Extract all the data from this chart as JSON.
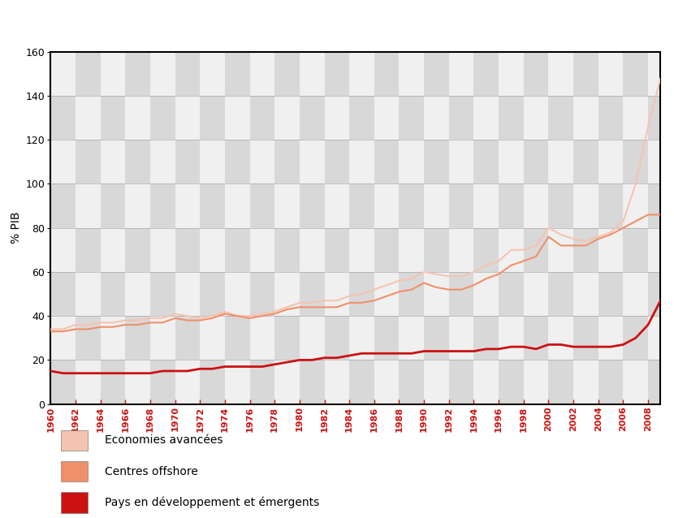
{
  "ylabel": "% PIB",
  "years": [
    1960,
    1961,
    1962,
    1963,
    1964,
    1965,
    1966,
    1967,
    1968,
    1969,
    1970,
    1971,
    1972,
    1973,
    1974,
    1975,
    1976,
    1977,
    1978,
    1979,
    1980,
    1981,
    1982,
    1983,
    1984,
    1985,
    1986,
    1987,
    1988,
    1989,
    1990,
    1991,
    1992,
    1993,
    1994,
    1995,
    1996,
    1997,
    1998,
    1999,
    2000,
    2001,
    2002,
    2003,
    2004,
    2005,
    2006,
    2007,
    2008,
    2009
  ],
  "economies_avancees": [
    34,
    34,
    36,
    36,
    37,
    37,
    38,
    38,
    39,
    39,
    41,
    40,
    39,
    40,
    42,
    40,
    40,
    41,
    42,
    44,
    46,
    46,
    47,
    47,
    49,
    50,
    52,
    54,
    56,
    57,
    60,
    59,
    58,
    58,
    60,
    63,
    65,
    70,
    70,
    72,
    80,
    77,
    75,
    74,
    76,
    78,
    83,
    100,
    126,
    148
  ],
  "centres_offshore": [
    33,
    33,
    34,
    34,
    35,
    35,
    36,
    36,
    37,
    37,
    39,
    38,
    38,
    39,
    41,
    40,
    39,
    40,
    41,
    43,
    44,
    44,
    44,
    44,
    46,
    46,
    47,
    49,
    51,
    52,
    55,
    53,
    52,
    52,
    54,
    57,
    59,
    63,
    65,
    67,
    76,
    72,
    72,
    72,
    75,
    77,
    80,
    83,
    86,
    86
  ],
  "pays_developpement": [
    15,
    14,
    14,
    14,
    14,
    14,
    14,
    14,
    14,
    15,
    15,
    15,
    16,
    16,
    17,
    17,
    17,
    17,
    18,
    19,
    20,
    20,
    21,
    21,
    22,
    23,
    23,
    23,
    23,
    23,
    24,
    24,
    24,
    24,
    24,
    25,
    25,
    26,
    26,
    25,
    27,
    27,
    26,
    26,
    26,
    26,
    27,
    30,
    36,
    47
  ],
  "xlim": [
    1960,
    2009
  ],
  "ylim": [
    0,
    160
  ],
  "yticks": [
    0,
    20,
    40,
    60,
    80,
    100,
    120,
    140,
    160
  ],
  "xticks": [
    1960,
    1962,
    1964,
    1966,
    1968,
    1970,
    1972,
    1974,
    1976,
    1978,
    1980,
    1982,
    1984,
    1986,
    1988,
    1990,
    1992,
    1994,
    1996,
    1998,
    2000,
    2002,
    2004,
    2006,
    2008
  ],
  "color_economies": "#f5c4b0",
  "color_offshore": "#f0906a",
  "color_pays": "#cc1111",
  "legend_labels": [
    "Economies avancées",
    "Centres offshore",
    "Pays en développement et émergents"
  ],
  "legend_colors": [
    "#f5c4b0",
    "#f0906a",
    "#cc1111"
  ],
  "bg_checker_light": "#d8d8d8",
  "bg_checker_white": "#f0f0f0",
  "grid_color": "#888888",
  "tick_color": "#cc1111",
  "label_color": "#cc1111",
  "axis_label_color": "#000000"
}
